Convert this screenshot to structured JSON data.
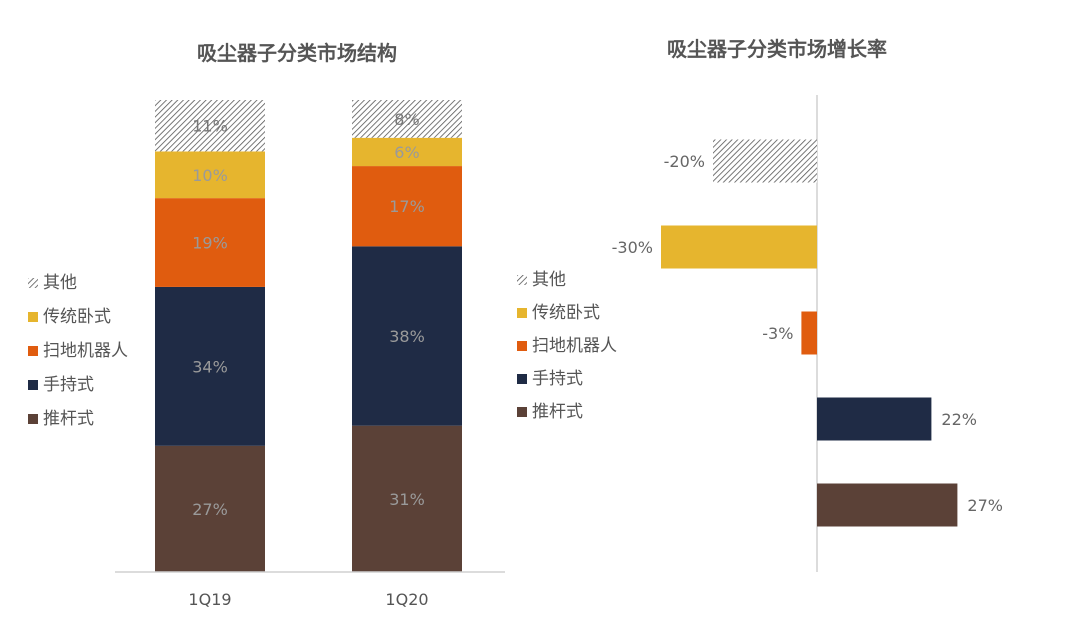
{
  "colors": {
    "其他": "hatch",
    "传统卧式": "#E6B52E",
    "扫地机器人": "#E05C0F",
    "手持式": "#1F2B45",
    "推杆式": "#5B4137",
    "axis": "#D0D0D0",
    "title": "#555555",
    "label": "#666666"
  },
  "chart_data": [
    {
      "type": "bar",
      "stacked": true,
      "title": "吸尘器子分类市场结构",
      "categories": [
        "1Q19",
        "1Q20"
      ],
      "series": [
        {
          "name": "推杆式",
          "values": [
            27,
            31
          ],
          "labels": [
            "27%",
            "31%"
          ]
        },
        {
          "name": "手持式",
          "values": [
            34,
            38
          ],
          "labels": [
            "34%",
            "38%"
          ]
        },
        {
          "name": "扫地机器人",
          "values": [
            19,
            17
          ],
          "labels": [
            "19%",
            "17%"
          ]
        },
        {
          "name": "传统卧式",
          "values": [
            10,
            6
          ],
          "labels": [
            "10%",
            "6%"
          ]
        },
        {
          "name": "其他",
          "values": [
            11,
            8
          ],
          "labels": [
            "11%",
            "8%"
          ]
        }
      ],
      "legend": {
        "position": "left",
        "order": [
          "其他",
          "传统卧式",
          "扫地机器人",
          "手持式",
          "推杆式"
        ]
      }
    },
    {
      "type": "bar",
      "orientation": "horizontal",
      "title": "吸尘器子分类市场增长率",
      "categories": [
        "其他",
        "传统卧式",
        "扫地机器人",
        "手持式",
        "推杆式"
      ],
      "values": [
        -20,
        -30,
        -3,
        22,
        27
      ],
      "labels": [
        "-20%",
        "-30%",
        "-3%",
        "22%",
        "27%"
      ],
      "legend": {
        "position": "left",
        "order": [
          "其他",
          "传统卧式",
          "扫地机器人",
          "手持式",
          "推杆式"
        ]
      }
    }
  ]
}
